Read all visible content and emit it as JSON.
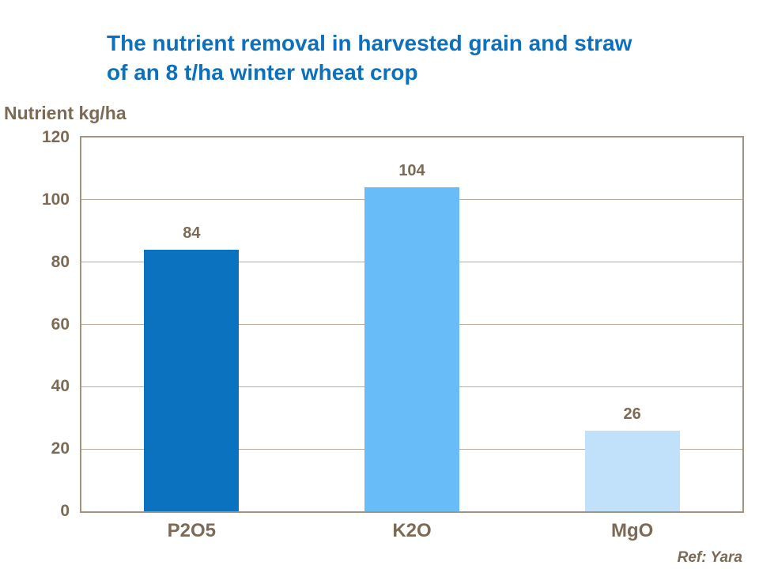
{
  "header": {
    "title_line1": "The nutrient removal in harvested grain and straw",
    "title_line2": "of an 8 t/ha winter wheat crop"
  },
  "footer": {
    "ref_note": "Ref: Yara"
  },
  "chart_data": {
    "type": "bar",
    "title": "The nutrient removal in harvested grain and straw of an 8 t/ha winter wheat crop",
    "categories": [
      "P2O5",
      "K2O",
      "MgO"
    ],
    "values": [
      84,
      104,
      26
    ],
    "value_labels": [
      "84",
      "104",
      "26"
    ],
    "xlabel": "",
    "ylabel": "Nutrient kg/ha",
    "ylim": [
      0,
      120
    ],
    "yticks": [
      0,
      20,
      40,
      60,
      80,
      100,
      120
    ],
    "grid": true,
    "legend": false,
    "bar_colors": [
      "#0b72bf",
      "#68bdf9",
      "#c1e1fb"
    ]
  },
  "colors": {
    "title_text": "#0d70bc",
    "axis_text": "#7b6a55",
    "plot_border": "#a4937f",
    "gridline": "#b9aa9a",
    "background": "#ffffff"
  }
}
